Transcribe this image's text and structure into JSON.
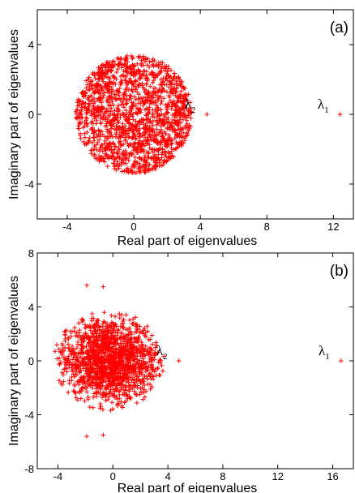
{
  "chart_data": [
    {
      "type": "scatter",
      "panel_label": "(a)",
      "xlabel": "Real part of eigenvalues",
      "ylabel": "Imaginary part of eigenvalues",
      "xlim": [
        -5.8,
        13.2
      ],
      "ylim": [
        -6,
        6
      ],
      "xticks": [
        -4,
        0,
        4,
        8,
        12
      ],
      "yticks": [
        -4,
        0,
        4
      ],
      "marker": "+",
      "marker_color": "#ff0000",
      "bulk": {
        "shape": "disk",
        "center": [
          0,
          0
        ],
        "radius_x": 3.5,
        "radius_y": 3.4,
        "approx_points": 1600
      },
      "outliers": [
        {
          "name": "λ2",
          "x": 4.4,
          "y": 0
        },
        {
          "name": "λ1",
          "x": 12.4,
          "y": 0
        }
      ]
    },
    {
      "type": "scatter",
      "panel_label": "(b)",
      "xlabel": "Real part of eigenvalues",
      "ylabel": "Imaginary part of eigenvalues",
      "xlim": [
        -5.5,
        17.5
      ],
      "ylim": [
        -8,
        8
      ],
      "xticks": [
        -4,
        0,
        4,
        8,
        12,
        16
      ],
      "yticks": [
        -8,
        -4,
        0,
        4,
        8
      ],
      "marker": "+",
      "marker_color": "#ff0000",
      "bulk": {
        "shape": "gaussian-disk",
        "center": [
          -0.3,
          0
        ],
        "radius_x": 3.6,
        "radius_y": 3.3,
        "approx_points": 1500
      },
      "isolated_points": [
        {
          "x": -1.9,
          "y": 5.6
        },
        {
          "x": -0.7,
          "y": 5.5
        },
        {
          "x": -1.9,
          "y": -5.6
        },
        {
          "x": -0.7,
          "y": -5.5
        }
      ],
      "outliers": [
        {
          "name": "λ2",
          "x": 4.8,
          "y": 0
        },
        {
          "name": "λ1",
          "x": 16.6,
          "y": 0
        }
      ]
    }
  ]
}
